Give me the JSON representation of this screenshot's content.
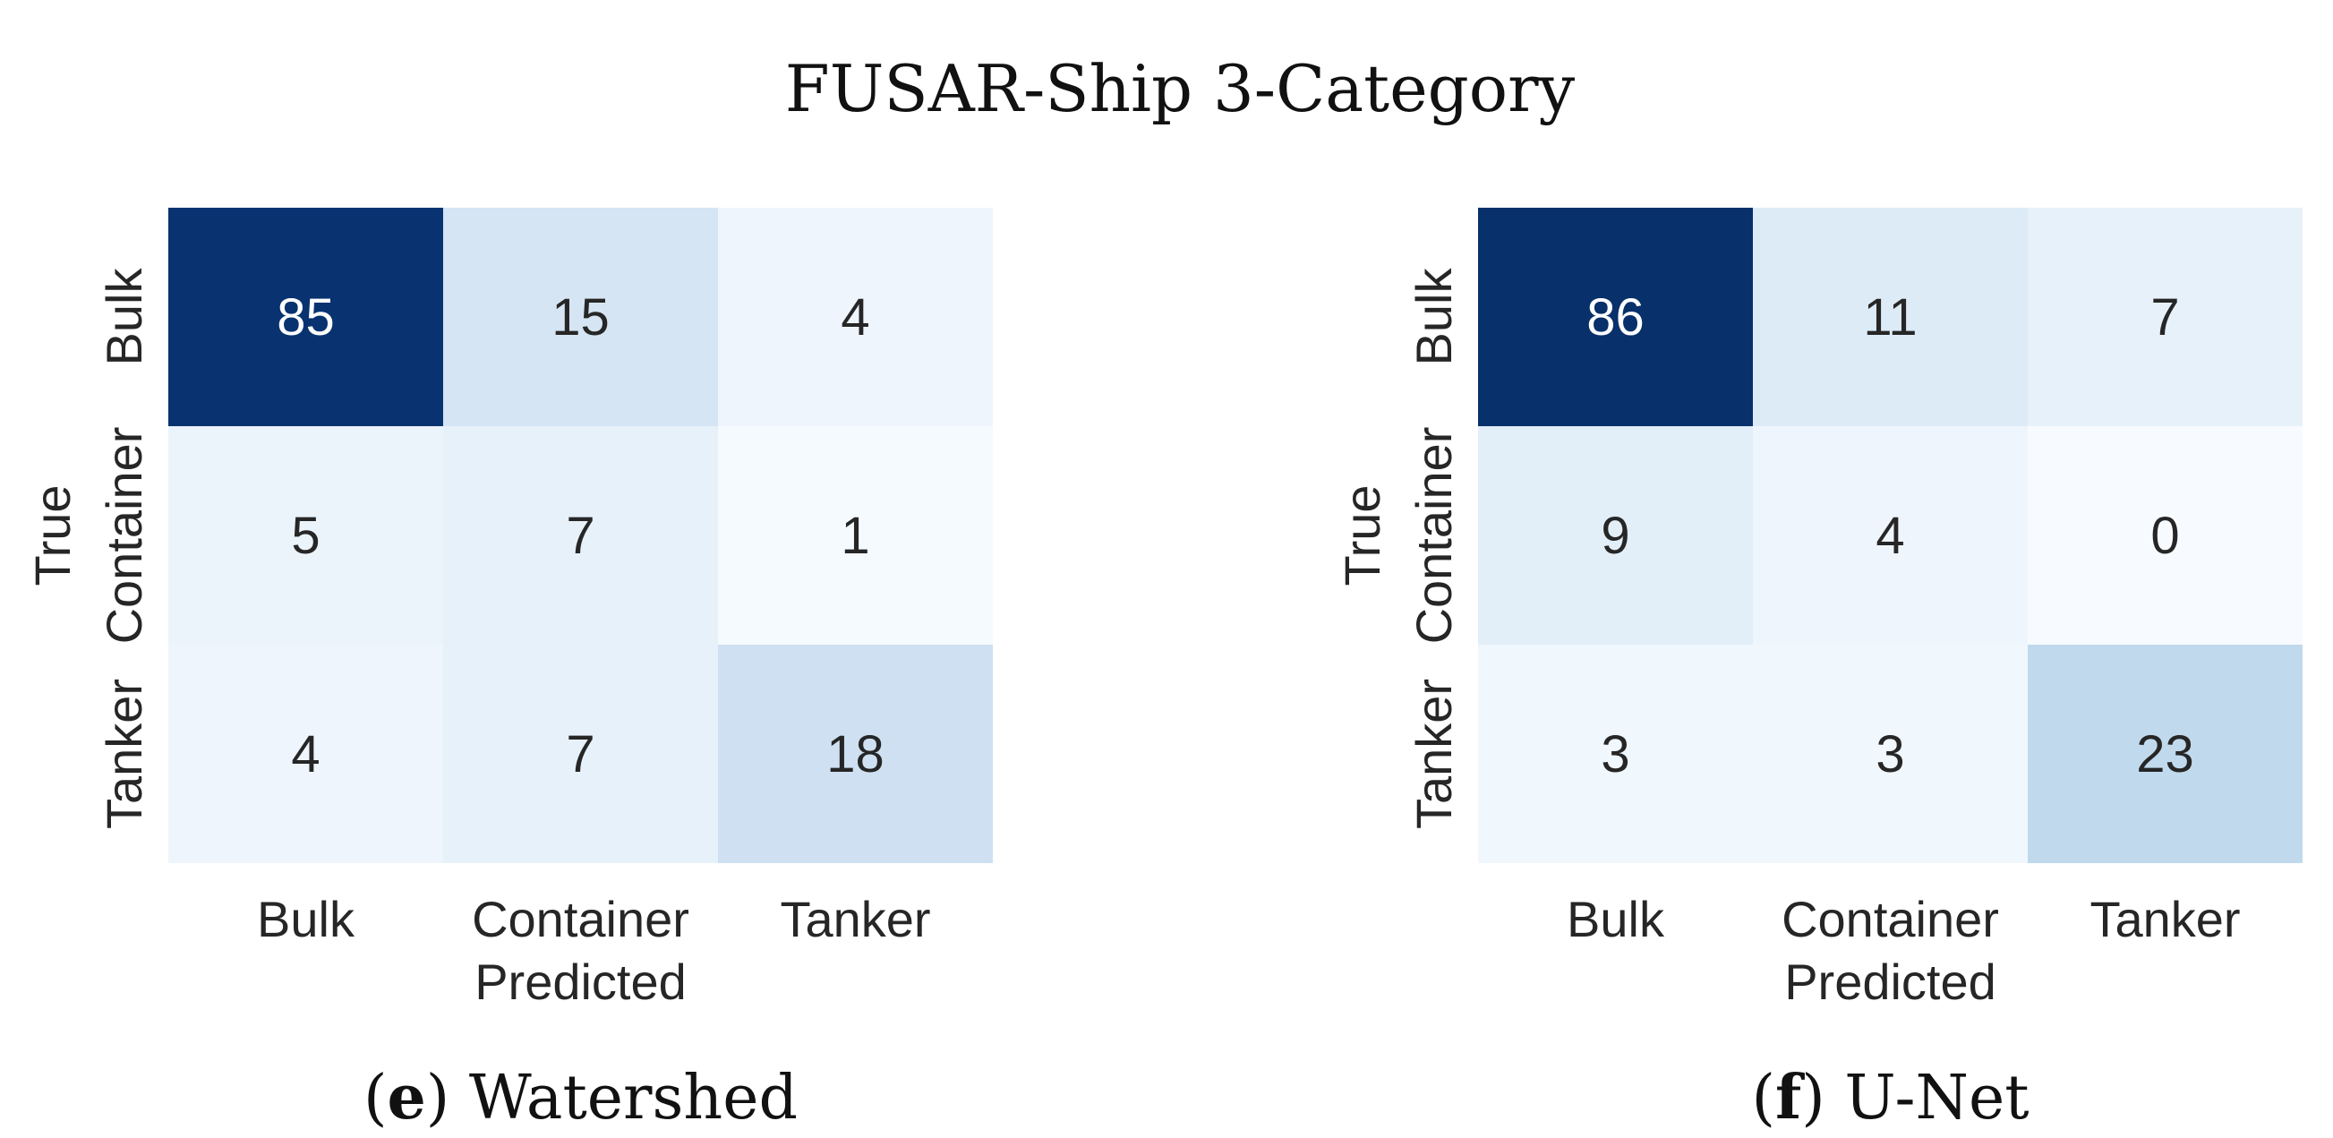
{
  "title": "FUSAR-Ship 3-Category",
  "chart_data": [
    {
      "type": "heatmap",
      "caption_letter": "e",
      "caption_text": " Watershed",
      "xlabel": "Predicted",
      "ylabel": "True",
      "x_categories": [
        "Bulk",
        "Container",
        "Tanker"
      ],
      "y_categories": [
        "Bulk",
        "Container",
        "Tanker"
      ],
      "values": [
        [
          85,
          15,
          4
        ],
        [
          5,
          7,
          1
        ],
        [
          4,
          7,
          18
        ]
      ],
      "colormap": "Blues",
      "color_range": [
        0,
        86
      ]
    },
    {
      "type": "heatmap",
      "caption_letter": "f",
      "caption_text": " U-Net",
      "xlabel": "Predicted",
      "ylabel": "True",
      "x_categories": [
        "Bulk",
        "Container",
        "Tanker"
      ],
      "y_categories": [
        "Bulk",
        "Container",
        "Tanker"
      ],
      "values": [
        [
          86,
          11,
          7
        ],
        [
          9,
          4,
          0
        ],
        [
          3,
          3,
          23
        ]
      ],
      "colormap": "Blues",
      "color_range": [
        0,
        86
      ]
    }
  ]
}
